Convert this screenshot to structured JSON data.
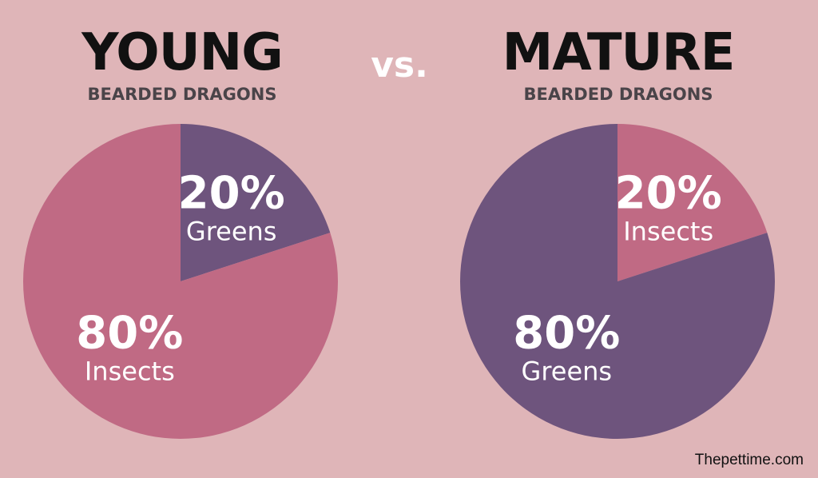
{
  "vs_label": "vs.",
  "credit": "Thepettime.com",
  "colors": {
    "background": "#dfb5b8",
    "insects": "#c06a84",
    "greens": "#6e547d"
  },
  "chart_data": [
    {
      "type": "pie",
      "title": "YOUNG",
      "subtitle": "BEARDED DRAGONS",
      "slices": [
        {
          "label": "Greens",
          "value": 20,
          "display": "20%",
          "color": "#6e547d"
        },
        {
          "label": "Insects",
          "value": 80,
          "display": "80%",
          "color": "#c06a84"
        }
      ]
    },
    {
      "type": "pie",
      "title": "MATURE",
      "subtitle": "BEARDED DRAGONS",
      "slices": [
        {
          "label": "Insects",
          "value": 20,
          "display": "20%",
          "color": "#c06a84"
        },
        {
          "label": "Greens",
          "value": 80,
          "display": "80%",
          "color": "#6e547d"
        }
      ]
    }
  ]
}
